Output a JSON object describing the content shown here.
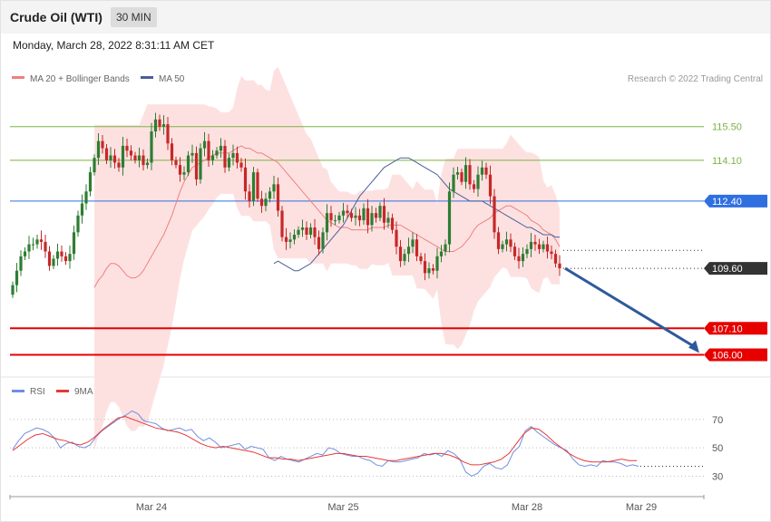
{
  "header": {
    "title": "Crude Oil (WTI)",
    "timeframe": "30 MIN",
    "timestamp": "Monday, March 28, 2022 8:31:11 AM CET"
  },
  "legend": {
    "ma20": "MA 20 + Bollinger Bands",
    "ma50": "MA 50",
    "credit": "Research © 2022 Trading Central",
    "rsi": "RSI",
    "rsi_ma": "9MA"
  },
  "colors": {
    "candle_up": "#2e7d32",
    "candle_down": "#c62828",
    "bollinger_fill": "#fde1e1",
    "ma20": "#f08080",
    "ma50": "#4a5f9a",
    "resistance": "#7cb342",
    "pivot": "#2f6fe0",
    "support": "#e60000",
    "current": "#333333",
    "forecast_arrow": "#2e5a9c",
    "rsi": "#6f8fe0",
    "rsi_ma": "#e53935"
  },
  "chart_data": {
    "type": "candlestick",
    "instrument": "Crude Oil (WTI)",
    "interval": "30 MIN",
    "ylim": [
      105.3,
      117.0
    ],
    "x_labels": [
      {
        "label": "Mar 24",
        "index": 34
      },
      {
        "label": "Mar 25",
        "index": 81
      },
      {
        "label": "Mar 28",
        "index": 126
      },
      {
        "label": "Mar 29",
        "index": 154
      }
    ],
    "levels": [
      {
        "value": 115.5,
        "label": "115.50",
        "kind": "resistance"
      },
      {
        "value": 114.1,
        "label": "114.10",
        "kind": "resistance"
      },
      {
        "value": 112.4,
        "label": "112.40",
        "kind": "pivot"
      },
      {
        "value": 109.6,
        "label": "109.60",
        "kind": "current"
      },
      {
        "value": 107.1,
        "label": "107.10",
        "kind": "support"
      },
      {
        "value": 106.0,
        "label": "106.00",
        "kind": "support"
      }
    ],
    "close": [
      108.9,
      109.5,
      110.1,
      110.3,
      110.6,
      110.6,
      110.8,
      110.7,
      110.3,
      109.7,
      110.0,
      110.3,
      110.1,
      109.9,
      110.2,
      111.1,
      111.8,
      112.3,
      112.8,
      113.6,
      114.2,
      114.9,
      114.6,
      114.1,
      114.3,
      114.0,
      113.8,
      114.7,
      114.5,
      114.3,
      114.1,
      114.3,
      113.9,
      114.0,
      115.3,
      115.8,
      115.5,
      115.6,
      114.8,
      114.1,
      113.9,
      113.5,
      113.6,
      114.3,
      114.4,
      113.3,
      114.6,
      114.9,
      114.1,
      114.3,
      114.5,
      114.7,
      113.8,
      114.2,
      114.4,
      114.0,
      113.8,
      112.8,
      112.4,
      113.6,
      112.5,
      112.2,
      112.5,
      112.8,
      113.1,
      112.0,
      110.9,
      110.7,
      110.8,
      111.0,
      111.2,
      111.3,
      111.0,
      111.3,
      110.9,
      110.4,
      111.1,
      111.9,
      111.6,
      111.6,
      111.8,
      112.0,
      111.9,
      111.7,
      111.8,
      111.6,
      112.1,
      111.4,
      111.9,
      111.7,
      112.2,
      111.5,
      111.7,
      111.2,
      110.5,
      109.9,
      110.2,
      110.5,
      110.8,
      110.1,
      109.9,
      109.4,
      109.6,
      109.5,
      110.1,
      110.3,
      110.6,
      112.8,
      113.5,
      113.6,
      113.2,
      113.9,
      113.1,
      112.9,
      113.5,
      113.8,
      113.5,
      112.6,
      111.1,
      110.4,
      110.6,
      110.8,
      110.5,
      110.1,
      109.9,
      110.2,
      110.4,
      110.7,
      110.6,
      110.4,
      110.6,
      110.3,
      110.2,
      109.8,
      109.6
    ],
    "ma20": [
      108.8,
      109.1,
      109.3,
      109.6,
      109.8,
      109.8,
      109.7,
      109.5,
      109.3,
      109.2,
      109.2,
      109.3,
      109.5,
      109.8,
      110.1,
      110.4,
      110.7,
      111.0,
      111.4,
      111.8,
      112.3,
      112.8,
      113.2,
      113.5,
      113.8,
      113.9,
      114.0,
      114.1,
      114.2,
      114.3,
      114.4,
      114.4,
      114.4,
      114.4,
      114.5,
      114.6,
      114.7,
      114.6,
      114.6,
      114.5,
      114.4,
      114.4,
      114.3,
      114.2,
      114.1,
      114.0,
      113.8,
      113.6,
      113.4,
      113.2,
      113.0,
      112.8,
      112.6,
      112.4,
      112.2,
      112.0,
      111.8,
      111.6,
      111.5,
      111.4,
      111.3,
      111.3,
      111.3,
      111.2,
      111.2,
      111.2,
      111.2,
      111.2,
      111.3,
      111.3,
      111.3,
      111.3,
      111.4,
      111.4,
      111.4,
      111.4,
      111.3,
      111.2,
      111.1,
      111.0,
      110.9,
      110.8,
      110.7,
      110.6,
      110.5,
      110.4,
      110.3,
      110.3,
      110.3,
      110.4,
      110.5,
      110.7,
      110.9,
      111.2,
      111.4,
      111.5,
      111.6,
      111.7,
      111.9,
      112.0,
      112.1,
      112.2,
      112.2,
      112.1,
      112.0,
      111.9,
      111.8,
      111.6,
      111.5,
      111.4,
      111.2,
      111.1,
      111.0,
      110.8,
      110.5
    ],
    "ma50": [
      109.8,
      109.9,
      109.8,
      109.7,
      109.6,
      109.5,
      109.5,
      109.6,
      109.7,
      109.8,
      110.0,
      110.2,
      110.4,
      110.6,
      110.8,
      111.0,
      111.2,
      111.4,
      111.7,
      112.0,
      112.3,
      112.6,
      112.8,
      113.0,
      113.2,
      113.4,
      113.6,
      113.8,
      113.9,
      114.0,
      114.1,
      114.2,
      114.2,
      114.2,
      114.1,
      114.0,
      113.9,
      113.8,
      113.7,
      113.6,
      113.5,
      113.3,
      113.1,
      112.9,
      112.8,
      112.7,
      112.6,
      112.5,
      112.4,
      112.4,
      112.4,
      112.4,
      112.3,
      112.2,
      112.1,
      112.0,
      111.9,
      111.8,
      111.7,
      111.6,
      111.5,
      111.4,
      111.3,
      111.3,
      111.2,
      111.1,
      111.0,
      111.0,
      111.0,
      110.9,
      110.9
    ],
    "rsi": {
      "ylim": [
        22,
        82
      ],
      "ticks": [
        70,
        50,
        30
      ],
      "rsi": [
        49,
        55,
        60,
        62,
        64,
        63,
        61,
        57,
        50,
        53,
        54,
        51,
        50,
        52,
        58,
        62,
        65,
        68,
        71,
        73,
        76,
        74,
        69,
        68,
        67,
        64,
        62,
        63,
        64,
        62,
        63,
        58,
        55,
        57,
        54,
        50,
        51,
        52,
        53,
        49,
        51,
        50,
        49,
        43,
        41,
        44,
        42,
        41,
        40,
        42,
        44,
        46,
        45,
        50,
        49,
        46,
        45,
        44,
        44,
        42,
        41,
        38,
        37,
        41,
        40,
        40,
        41,
        42,
        43,
        46,
        45,
        46,
        44,
        48,
        46,
        42,
        33,
        30,
        32,
        37,
        39,
        36,
        35,
        38,
        47,
        51,
        62,
        65,
        61,
        58,
        55,
        52,
        50,
        48,
        42,
        38,
        37,
        38,
        37,
        41,
        40,
        40,
        39,
        37,
        38,
        37
      ],
      "ma": [
        48,
        52,
        56,
        59,
        60,
        58,
        56,
        55,
        53,
        52,
        54,
        58,
        63,
        67,
        71,
        72,
        70,
        68,
        66,
        64,
        63,
        62,
        61,
        59,
        56,
        53,
        51,
        50,
        51,
        50,
        49,
        48,
        47,
        45,
        43,
        43,
        42,
        42,
        41,
        42,
        43,
        44,
        45,
        46,
        46,
        45,
        44,
        44,
        43,
        42,
        41,
        41,
        42,
        43,
        44,
        45,
        46,
        46,
        45,
        43,
        40,
        38,
        38,
        39,
        40,
        42,
        46,
        53,
        60,
        64,
        63,
        59,
        54,
        50,
        46,
        43,
        41,
        40,
        40,
        40,
        41,
        42,
        41,
        41
      ]
    }
  }
}
